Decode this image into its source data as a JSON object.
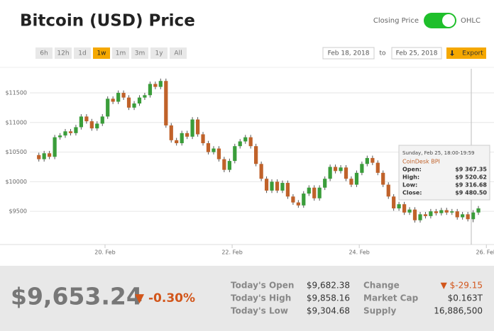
{
  "header": {
    "title": "Bitcoin (USD) Price",
    "toggle_left": "Closing Price",
    "toggle_right": "OHLC"
  },
  "controls": {
    "ranges": [
      "6h",
      "12h",
      "1d",
      "1w",
      "1m",
      "3m",
      "1y",
      "All"
    ],
    "active_range": "1w",
    "date_from": "Feb 18, 2018",
    "date_sep": "to",
    "date_to": "Feb 25, 2018",
    "export": "Export"
  },
  "chart_data": {
    "type": "candlestick",
    "up_color": "#3a9d3a",
    "down_color": "#c0622a",
    "grid": true,
    "xlim": [
      18.85,
      26.12
    ],
    "ylim": [
      8940,
      11930
    ],
    "xticks": [
      {
        "value": 20,
        "label": "20. Feb"
      },
      {
        "value": 22,
        "label": "22. Feb"
      },
      {
        "value": 24,
        "label": "24. Feb"
      },
      {
        "value": 26,
        "label": "26. Feb"
      }
    ],
    "yticks": [
      {
        "value": 9500,
        "label": "$9500"
      },
      {
        "value": 10000,
        "label": "$10000"
      },
      {
        "value": 10500,
        "label": "$10500"
      },
      {
        "value": 11000,
        "label": "$11000"
      },
      {
        "value": 11500,
        "label": "$11500"
      }
    ],
    "x": [
      18.917,
      19.0,
      19.083,
      19.167,
      19.25,
      19.333,
      19.417,
      19.5,
      19.583,
      19.667,
      19.75,
      19.833,
      19.917,
      20.0,
      20.083,
      20.167,
      20.25,
      20.333,
      20.417,
      20.5,
      20.583,
      20.667,
      20.75,
      20.833,
      20.917,
      21.0,
      21.083,
      21.167,
      21.25,
      21.333,
      21.417,
      21.5,
      21.583,
      21.667,
      21.75,
      21.833,
      21.917,
      22.0,
      22.083,
      22.167,
      22.25,
      22.333,
      22.417,
      22.5,
      22.583,
      22.667,
      22.75,
      22.833,
      22.917,
      23.0,
      23.083,
      23.167,
      23.25,
      23.333,
      23.417,
      23.5,
      23.583,
      23.667,
      23.75,
      23.833,
      23.917,
      24.0,
      24.083,
      24.167,
      24.25,
      24.333,
      24.417,
      24.5,
      24.583,
      24.667,
      24.75,
      24.833,
      24.917,
      25.0,
      25.083,
      25.167,
      25.25,
      25.333,
      25.417,
      25.5,
      25.583,
      25.667,
      25.75,
      25.833
    ],
    "open": [
      10450,
      10380,
      10480,
      10420,
      10750,
      10780,
      10850,
      10820,
      10920,
      11100,
      11020,
      10900,
      10980,
      11100,
      11400,
      11350,
      11500,
      11420,
      11250,
      11320,
      11420,
      11460,
      11650,
      11600,
      11700,
      10950,
      10700,
      10650,
      10820,
      10760,
      11050,
      10800,
      10650,
      10500,
      10560,
      10380,
      10200,
      10350,
      10600,
      10680,
      10750,
      10600,
      10300,
      10050,
      9850,
      10000,
      9850,
      9980,
      9750,
      9650,
      9600,
      9800,
      9900,
      9720,
      9900,
      10050,
      10250,
      10180,
      10240,
      10050,
      9950,
      10150,
      10300,
      10400,
      10320,
      10150,
      9950,
      9750,
      9550,
      9620,
      9480,
      9530,
      9350,
      9450,
      9420,
      9500,
      9470,
      9520,
      9480,
      9500,
      9400,
      9450,
      9367.35,
      9480.5
    ],
    "high": [
      10490,
      10520,
      10520,
      10790,
      10820,
      10890,
      10890,
      10960,
      11140,
      11140,
      11060,
      11020,
      11140,
      11440,
      11440,
      11540,
      11540,
      11460,
      11360,
      11460,
      11500,
      11690,
      11690,
      11740,
      11740,
      10990,
      10740,
      10860,
      10860,
      11090,
      11090,
      10840,
      10690,
      10600,
      10600,
      10420,
      10390,
      10640,
      10720,
      10790,
      10790,
      10640,
      10340,
      10090,
      10040,
      10040,
      10020,
      10020,
      9790,
      9690,
      9840,
      9940,
      9940,
      9940,
      10090,
      10290,
      10290,
      10280,
      10280,
      10090,
      10190,
      10340,
      10440,
      10440,
      10360,
      10190,
      9990,
      9790,
      9660,
      9660,
      9570,
      9570,
      9490,
      9490,
      9540,
      9540,
      9560,
      9560,
      9540,
      9540,
      9490,
      9490,
      9520.62,
      9590
    ],
    "low": [
      10340,
      10340,
      10380,
      10380,
      10710,
      10740,
      10780,
      10780,
      10880,
      10980,
      10860,
      10860,
      10940,
      11060,
      11310,
      11310,
      11380,
      11210,
      11210,
      11280,
      11380,
      11420,
      11560,
      11560,
      10910,
      10660,
      10610,
      10610,
      10720,
      10720,
      10760,
      10610,
      10460,
      10460,
      10340,
      10160,
      10160,
      10310,
      10560,
      10640,
      10560,
      10260,
      10010,
      9810,
      9810,
      9810,
      9810,
      9710,
      9610,
      9560,
      9560,
      9760,
      9680,
      9680,
      9860,
      10010,
      10140,
      10140,
      10010,
      9910,
      9910,
      10110,
      10260,
      10280,
      10110,
      9910,
      9710,
      9510,
      9510,
      9440,
      9440,
      9310,
      9310,
      9380,
      9380,
      9430,
      9430,
      9440,
      9440,
      9360,
      9360,
      9330,
      9316.68,
      9440
    ],
    "close": [
      10380,
      10480,
      10420,
      10750,
      10780,
      10850,
      10820,
      10920,
      11100,
      11020,
      10900,
      10980,
      11100,
      11400,
      11350,
      11500,
      11420,
      11250,
      11320,
      11420,
      11460,
      11650,
      11600,
      11700,
      10950,
      10700,
      10650,
      10820,
      10760,
      11050,
      10800,
      10650,
      10500,
      10560,
      10380,
      10200,
      10350,
      10600,
      10680,
      10750,
      10600,
      10300,
      10050,
      9850,
      10000,
      9850,
      9980,
      9750,
      9650,
      9600,
      9800,
      9900,
      9720,
      9900,
      10050,
      10250,
      10180,
      10240,
      10050,
      9950,
      10150,
      10300,
      10400,
      10320,
      10150,
      9950,
      9750,
      9550,
      9620,
      9480,
      9530,
      9350,
      9450,
      9420,
      9500,
      9470,
      9520,
      9480,
      9500,
      9400,
      9450,
      9367.35,
      9480.5,
      9550
    ]
  },
  "tooltip": {
    "title": "Sunday, Feb 25, 18:00-19:59",
    "source": "CoinDesk BPI",
    "rows": [
      [
        "Open:",
        "$9 367.35"
      ],
      [
        "High:",
        "$9 520.62"
      ],
      [
        "Low:",
        "$9 316.68"
      ],
      [
        "Close:",
        "$9 480.50"
      ]
    ]
  },
  "stats": {
    "price": "$9,653.24",
    "change_pct": "▼ -0.30%",
    "left": [
      [
        "Today's Open",
        "$9,682.38"
      ],
      [
        "Today's High",
        "$9,858.16"
      ],
      [
        "Today's Low",
        "$9,304.68"
      ]
    ],
    "right": [
      [
        "Change",
        "▼ $-29.15"
      ],
      [
        "Market Cap",
        "$0.163T"
      ],
      [
        "Supply",
        "16,886,500"
      ]
    ]
  }
}
